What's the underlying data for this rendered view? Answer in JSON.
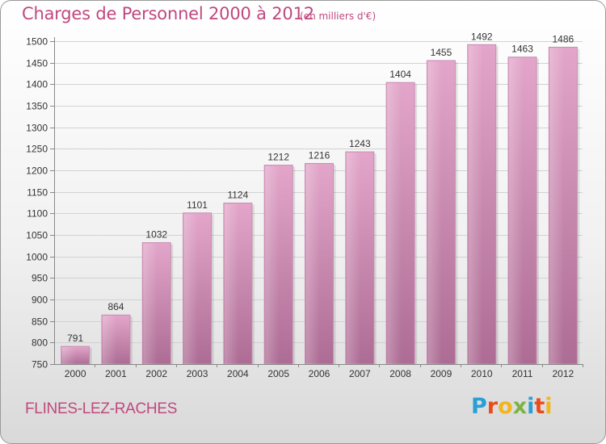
{
  "header": {
    "title": "Charges de Personnel 2000 à 2012",
    "unit": "(en milliers d'€)"
  },
  "footer": {
    "commune": "FLINES-LEZ-RACHES",
    "brand": "Proxiti",
    "brand_colors": [
      "#2a9fd6",
      "#e84c1c",
      "#f2b51c",
      "#7cb342",
      "#2a9fd6",
      "#e84c1c",
      "#f2b51c"
    ]
  },
  "colors": {
    "accent": "#c0487f",
    "bar_top": "#e3a6ca",
    "bar_bottom": "#ad6c94",
    "bar_edge": "#c98db2"
  },
  "chart_data": {
    "type": "bar",
    "title": "Charges de Personnel 2000 à 2012",
    "categories": [
      "2000",
      "2001",
      "2002",
      "2003",
      "2004",
      "2005",
      "2006",
      "2007",
      "2008",
      "2009",
      "2010",
      "2011",
      "2012"
    ],
    "values": [
      791,
      864,
      1032,
      1101,
      1124,
      1212,
      1216,
      1243,
      1404,
      1455,
      1492,
      1463,
      1486
    ],
    "ylim": [
      750,
      1500
    ],
    "yticks": [
      750,
      800,
      850,
      900,
      950,
      1000,
      1050,
      1100,
      1150,
      1200,
      1250,
      1300,
      1350,
      1400,
      1450,
      1500
    ],
    "grid": true,
    "xlabel": "",
    "ylabel": ""
  }
}
